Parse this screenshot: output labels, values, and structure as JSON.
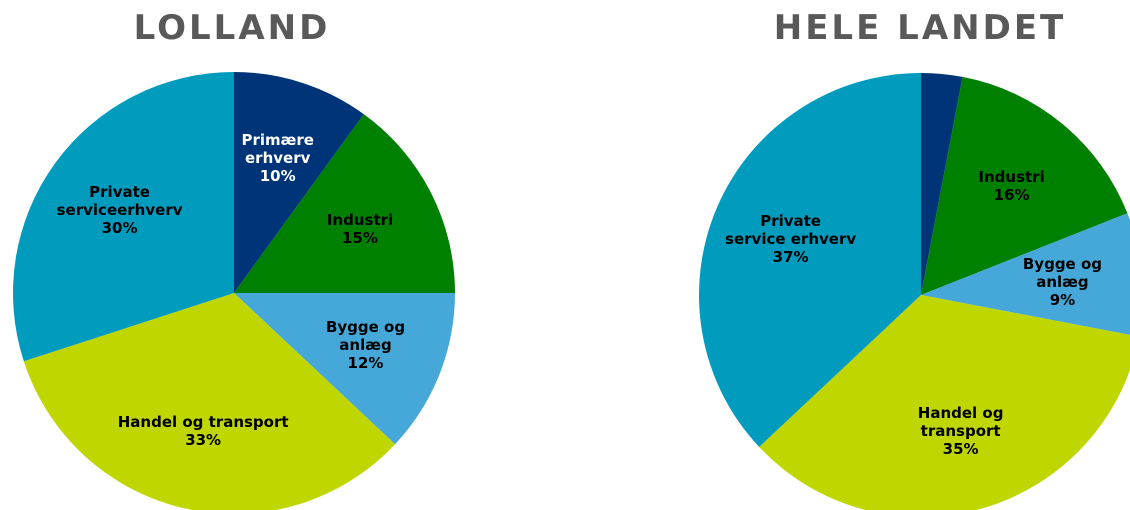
{
  "chart_data": [
    {
      "type": "pie",
      "title": "LOLLAND",
      "categories": [
        "Primære\nerhverv",
        "Industri",
        "Bygge og\nanlæg",
        "Handel og transport",
        "Private\nserviceerhverv"
      ],
      "values": [
        10,
        15,
        12,
        33,
        30
      ],
      "value_labels": [
        "10%",
        "15%",
        "12%",
        "33%",
        "30%"
      ],
      "colors": [
        "#003478",
        "#008000",
        "#45a8d8",
        "#c0d600",
        "#009bbd"
      ]
    },
    {
      "type": "pie",
      "title": "HELE LANDET",
      "categories": [
        null,
        "Industri",
        "Bygge og\nanlæg",
        "Handel og\ntransport",
        "Private\nservice erhverv"
      ],
      "values": [
        3,
        16,
        9,
        35,
        37
      ],
      "value_labels": [
        null,
        "16%",
        "9%",
        "35%",
        "37%"
      ],
      "colors": [
        "#003478",
        "#008000",
        "#45a8d8",
        "#c0d600",
        "#009bbd"
      ]
    }
  ]
}
